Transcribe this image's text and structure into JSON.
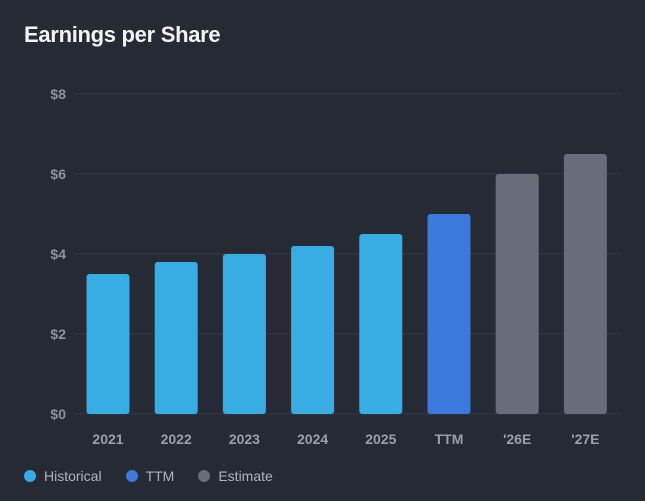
{
  "title": "Earnings per Share",
  "colors": {
    "background": "#262a35",
    "grid": "#353a46",
    "historical": "#37ade3",
    "ttm": "#3b79dc",
    "estimate": "#696d79"
  },
  "chart_data": {
    "type": "bar",
    "title": "Earnings per Share",
    "xlabel": "",
    "ylabel": "",
    "ylim": [
      0,
      8
    ],
    "yticks": [
      0,
      2,
      4,
      6,
      8
    ],
    "ytick_labels": [
      "$0",
      "$2",
      "$4",
      "$6",
      "$8"
    ],
    "grid": true,
    "legend_placement": "bottom-left",
    "categories": [
      "2021",
      "2022",
      "2023",
      "2024",
      "2025",
      "TTM",
      "'26E",
      "'27E"
    ],
    "values": [
      3.5,
      3.8,
      4.0,
      4.2,
      4.5,
      5.0,
      6.0,
      6.5
    ],
    "kinds": [
      "historical",
      "historical",
      "historical",
      "historical",
      "historical",
      "ttm",
      "estimate",
      "estimate"
    ],
    "legend": [
      {
        "key": "historical",
        "label": "Historical"
      },
      {
        "key": "ttm",
        "label": "TTM"
      },
      {
        "key": "estimate",
        "label": "Estimate"
      }
    ]
  }
}
